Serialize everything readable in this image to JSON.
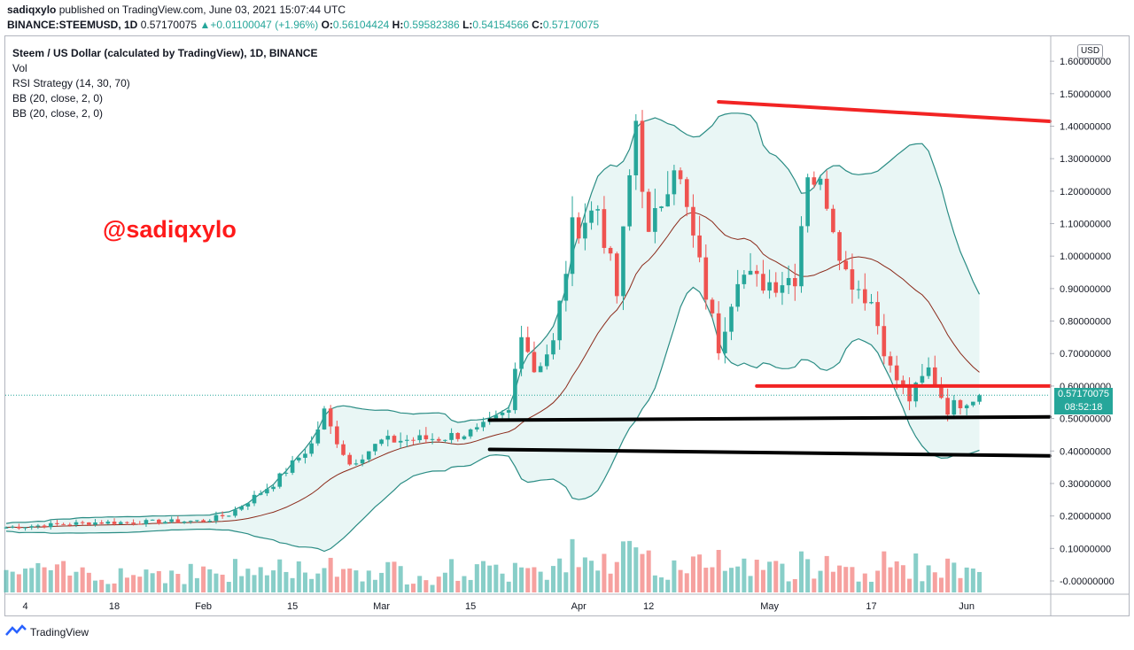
{
  "header": {
    "author": "sadiqxylo",
    "published_text": " published on TradingView.com, June 03, 2021 15:07:44 UTC",
    "symbol": "BINANCE:STEEMUSD, 1D",
    "last_price": "0.57170075",
    "change": "+0.01100047 (+1.96%)",
    "o_label": "O:",
    "o_value": "0.56104424",
    "h_label": "H:",
    "h_value": "0.59582386",
    "l_label": "L:",
    "l_value": "0.54154566",
    "c_label": "C:",
    "c_value": "0.57170075"
  },
  "legend": {
    "title": "Steem / US Dollar (calculated by TradingView), 1D, BINANCE",
    "vol": "Vol",
    "rsi": "RSI Strategy (14, 30, 70)",
    "bb1": "BB (20, close, 2, 0)",
    "bb2": "BB (20, close, 2, 0)"
  },
  "watermark": "@sadiqxylo",
  "currency_badge": "USD",
  "price_box": {
    "price": "0.57170075",
    "countdown": "08:52:18"
  },
  "footer": {
    "brand": "TradingView"
  },
  "colors": {
    "up": "#26a69a",
    "down": "#ef5350",
    "band_fill": "#e0f2f1",
    "basis": "#8b2a1a",
    "red_line": "#f22424",
    "black_line": "#000000"
  },
  "chart_data": {
    "type": "candlestick",
    "y_ticks": [
      "1.60000000",
      "1.50000000",
      "1.40000000",
      "1.30000000",
      "1.20000000",
      "1.10000000",
      "1.00000000",
      "0.90000000",
      "0.80000000",
      "0.70000000",
      "0.60000000",
      "0.50000000",
      "0.40000000",
      "0.30000000",
      "0.20000000",
      "0.10000000",
      "-0.00000000"
    ],
    "ylim": [
      0,
      1.6
    ],
    "x_ticks": [
      "4",
      "18",
      "Feb",
      "15",
      "Mar",
      "15",
      "Apr",
      "12",
      "May",
      "17",
      "Jun"
    ],
    "date_range": [
      "2021-01-01",
      "2021-06-03"
    ],
    "close_path": [
      [
        "2021-01-01",
        0.165
      ],
      [
        "2021-01-15",
        0.18
      ],
      [
        "2021-01-20",
        0.18
      ],
      [
        "2021-02-01",
        0.185
      ],
      [
        "2021-02-05",
        0.205
      ],
      [
        "2021-02-12",
        0.3
      ],
      [
        "2021-02-18",
        0.42
      ],
      [
        "2021-02-20",
        0.52
      ],
      [
        "2021-02-21",
        0.47
      ],
      [
        "2021-02-24",
        0.36
      ],
      [
        "2021-03-01",
        0.43
      ],
      [
        "2021-03-10",
        0.44
      ],
      [
        "2021-03-16",
        0.46
      ],
      [
        "2021-03-21",
        0.52
      ],
      [
        "2021-03-23",
        0.78
      ],
      [
        "2021-03-25",
        0.65
      ],
      [
        "2021-03-28",
        0.73
      ],
      [
        "2021-03-31",
        1.08
      ],
      [
        "2021-04-04",
        1.15
      ],
      [
        "2021-04-07",
        0.88
      ],
      [
        "2021-04-10",
        1.42
      ],
      [
        "2021-04-12",
        1.05
      ],
      [
        "2021-04-16",
        1.3
      ],
      [
        "2021-04-19",
        1.05
      ],
      [
        "2021-04-23",
        0.72
      ],
      [
        "2021-04-26",
        0.95
      ],
      [
        "2021-04-29",
        0.92
      ],
      [
        "2021-05-02",
        0.92
      ],
      [
        "2021-05-05",
        0.94
      ],
      [
        "2021-05-07",
        1.27
      ],
      [
        "2021-05-10",
        1.18
      ],
      [
        "2021-05-13",
        0.95
      ],
      [
        "2021-05-17",
        0.86
      ],
      [
        "2021-05-20",
        0.65
      ],
      [
        "2021-05-23",
        0.56
      ],
      [
        "2021-05-26",
        0.65
      ],
      [
        "2021-05-29",
        0.53
      ],
      [
        "2021-06-01",
        0.56
      ],
      [
        "2021-06-03",
        0.5717
      ]
    ],
    "trendlines": [
      {
        "color": "red",
        "from": [
          "2021-04-23",
          1.475
        ],
        "to": [
          "2021-06-22",
          1.415
        ]
      },
      {
        "color": "red",
        "from": [
          "2021-04-29",
          0.6
        ],
        "to": [
          "2021-06-22",
          0.6
        ]
      },
      {
        "color": "black",
        "from": [
          "2021-03-18",
          0.495
        ],
        "to": [
          "2021-06-22",
          0.505
        ]
      },
      {
        "color": "black",
        "from": [
          "2021-03-18",
          0.405
        ],
        "to": [
          "2021-06-22",
          0.385
        ]
      }
    ]
  }
}
